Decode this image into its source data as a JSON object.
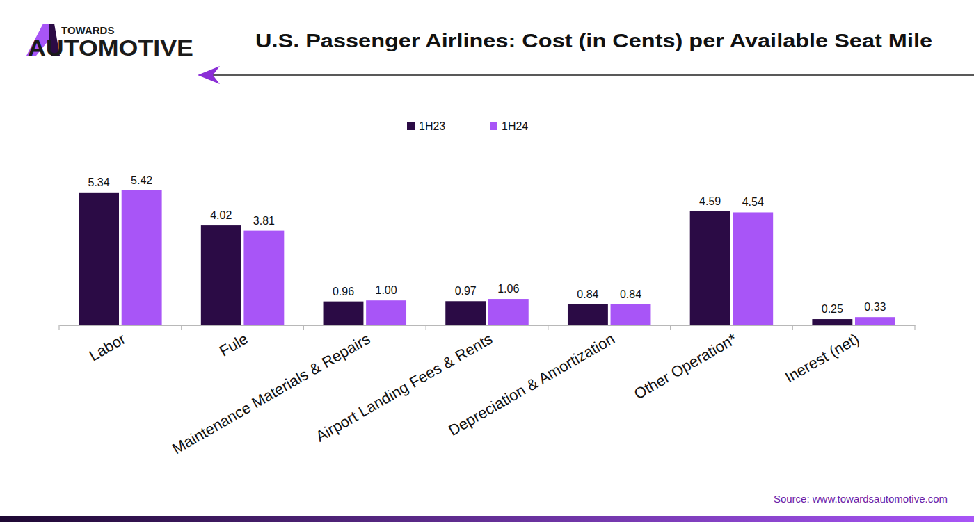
{
  "chart_data": {
    "type": "bar",
    "title": "U.S. Passenger Airlines: Cost (in Cents) per Available Seat Mile",
    "logo": {
      "top": "TOWARDS",
      "bottom": "AUTOMOTIVE"
    },
    "source": "Source: www.towardsautomotive.com",
    "categories": [
      "Labor",
      "Fule",
      "Maintenance Materials & Repairs",
      "Airport Landing Fees & Rents",
      "Depreciation & Amortization",
      "Other Operation*",
      "Inerest (net)"
    ],
    "series": [
      {
        "name": "1H23",
        "color": "#2b0b45",
        "values": [
          5.34,
          4.02,
          0.96,
          0.97,
          0.84,
          4.59,
          0.25
        ],
        "value_labels": [
          "5.34",
          "4.02",
          "0.96",
          "0.97",
          "0.84",
          "4.59",
          "0.25"
        ]
      },
      {
        "name": "1H24",
        "color": "#a855f7",
        "values": [
          5.42,
          3.81,
          1.0,
          1.06,
          0.84,
          4.54,
          0.33
        ],
        "value_labels": [
          "5.42",
          "3.81",
          "1.00",
          "1.06",
          "0.84",
          "4.54",
          "0.33"
        ]
      }
    ],
    "ylim": [
      0,
      6
    ],
    "legend": "top",
    "data_labels": true,
    "tick_labels": "x",
    "grid": false
  }
}
